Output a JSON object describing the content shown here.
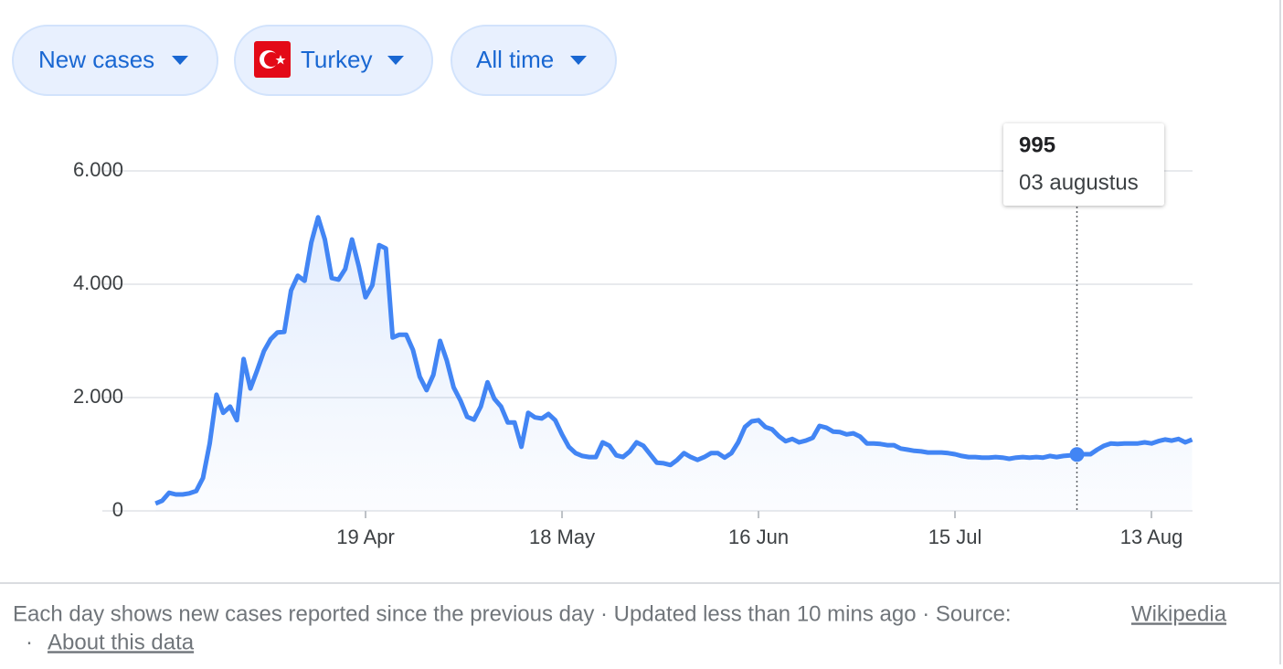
{
  "controls": [
    "New cases",
    "Turkey",
    "All time"
  ],
  "chart_data": {
    "type": "line",
    "categories": [
      null,
      null,
      null,
      null,
      null,
      null,
      null,
      null,
      null,
      null,
      null,
      null,
      null,
      null,
      null,
      null,
      null,
      null,
      null,
      null,
      null,
      null,
      null,
      null,
      null,
      null,
      null,
      null,
      null,
      null,
      null,
      "19 Apr",
      null,
      null,
      null,
      null,
      null,
      null,
      null,
      null,
      null,
      null,
      null,
      null,
      null,
      null,
      null,
      null,
      null,
      null,
      null,
      null,
      null,
      null,
      null,
      null,
      null,
      null,
      null,
      null,
      "18 May",
      null,
      null,
      null,
      null,
      null,
      null,
      null,
      null,
      null,
      null,
      null,
      null,
      null,
      null,
      null,
      null,
      null,
      null,
      null,
      null,
      null,
      null,
      null,
      null,
      null,
      null,
      null,
      null,
      "16 Jun",
      null,
      null,
      null,
      null,
      null,
      null,
      null,
      null,
      null,
      null,
      null,
      null,
      null,
      null,
      null,
      null,
      null,
      null,
      null,
      null,
      null,
      null,
      null,
      null,
      null,
      null,
      null,
      null,
      "15 Jul",
      null,
      null,
      null,
      null,
      null,
      null,
      null,
      null,
      null,
      null,
      null,
      null,
      null,
      null,
      null,
      null,
      null,
      null,
      null,
      null,
      null,
      null,
      null,
      null,
      null,
      null,
      null,
      null,
      "13 Aug",
      null,
      null,
      null,
      null,
      null,
      null
    ],
    "series": [
      {
        "name": "New cases",
        "color": "#4285f4",
        "values": [
          130,
          180,
          320,
          290,
          290,
          310,
          350,
          580,
          1190,
          2050,
          1730,
          1840,
          1600,
          2680,
          2160,
          2480,
          2820,
          3030,
          3150,
          3160,
          3890,
          4150,
          4060,
          4740,
          5180,
          4790,
          4110,
          4080,
          4270,
          4790,
          4320,
          3770,
          3980,
          4690,
          4630,
          3060,
          3110,
          3110,
          2840,
          2370,
          2130,
          2400,
          3000,
          2650,
          2180,
          1950,
          1660,
          1610,
          1840,
          2270,
          1980,
          1840,
          1560,
          1560,
          1130,
          1730,
          1650,
          1630,
          1710,
          1600,
          1350,
          1130,
          1020,
          970,
          950,
          950,
          1210,
          1150,
          980,
          950,
          1050,
          1210,
          1150,
          1000,
          850,
          840,
          810,
          900,
          1020,
          950,
          900,
          950,
          1020,
          1020,
          940,
          1020,
          1210,
          1480,
          1580,
          1600,
          1480,
          1440,
          1320,
          1230,
          1270,
          1210,
          1240,
          1290,
          1500,
          1470,
          1400,
          1390,
          1350,
          1370,
          1310,
          1190,
          1190,
          1180,
          1160,
          1160,
          1100,
          1080,
          1060,
          1050,
          1030,
          1030,
          1030,
          1020,
          1000,
          970,
          950,
          950,
          940,
          940,
          950,
          940,
          920,
          940,
          950,
          940,
          950,
          940,
          970,
          950,
          970,
          980,
          995,
          1000,
          1000,
          1080,
          1150,
          1190,
          1180,
          1190,
          1190,
          1190,
          1210,
          1190,
          1230,
          1260,
          1240,
          1270,
          1210,
          1260
        ]
      }
    ],
    "ylim": [
      0,
      6000
    ],
    "yticks": [
      0,
      {
        "value": 2000,
        "label": "2.000"
      },
      {
        "value": 4000,
        "label": "4.000"
      },
      {
        "value": 6000,
        "label": "6.000"
      }
    ],
    "grid": true,
    "tooltip": {
      "value": 995,
      "label": "03 augustus"
    }
  },
  "footer": {
    "text": "Each day shows new cases reported since the previous day · Updated less than 10 mins ago  ·  Source:",
    "source_link": "Wikipedia",
    "separator": "·",
    "about_link": "About this data"
  }
}
